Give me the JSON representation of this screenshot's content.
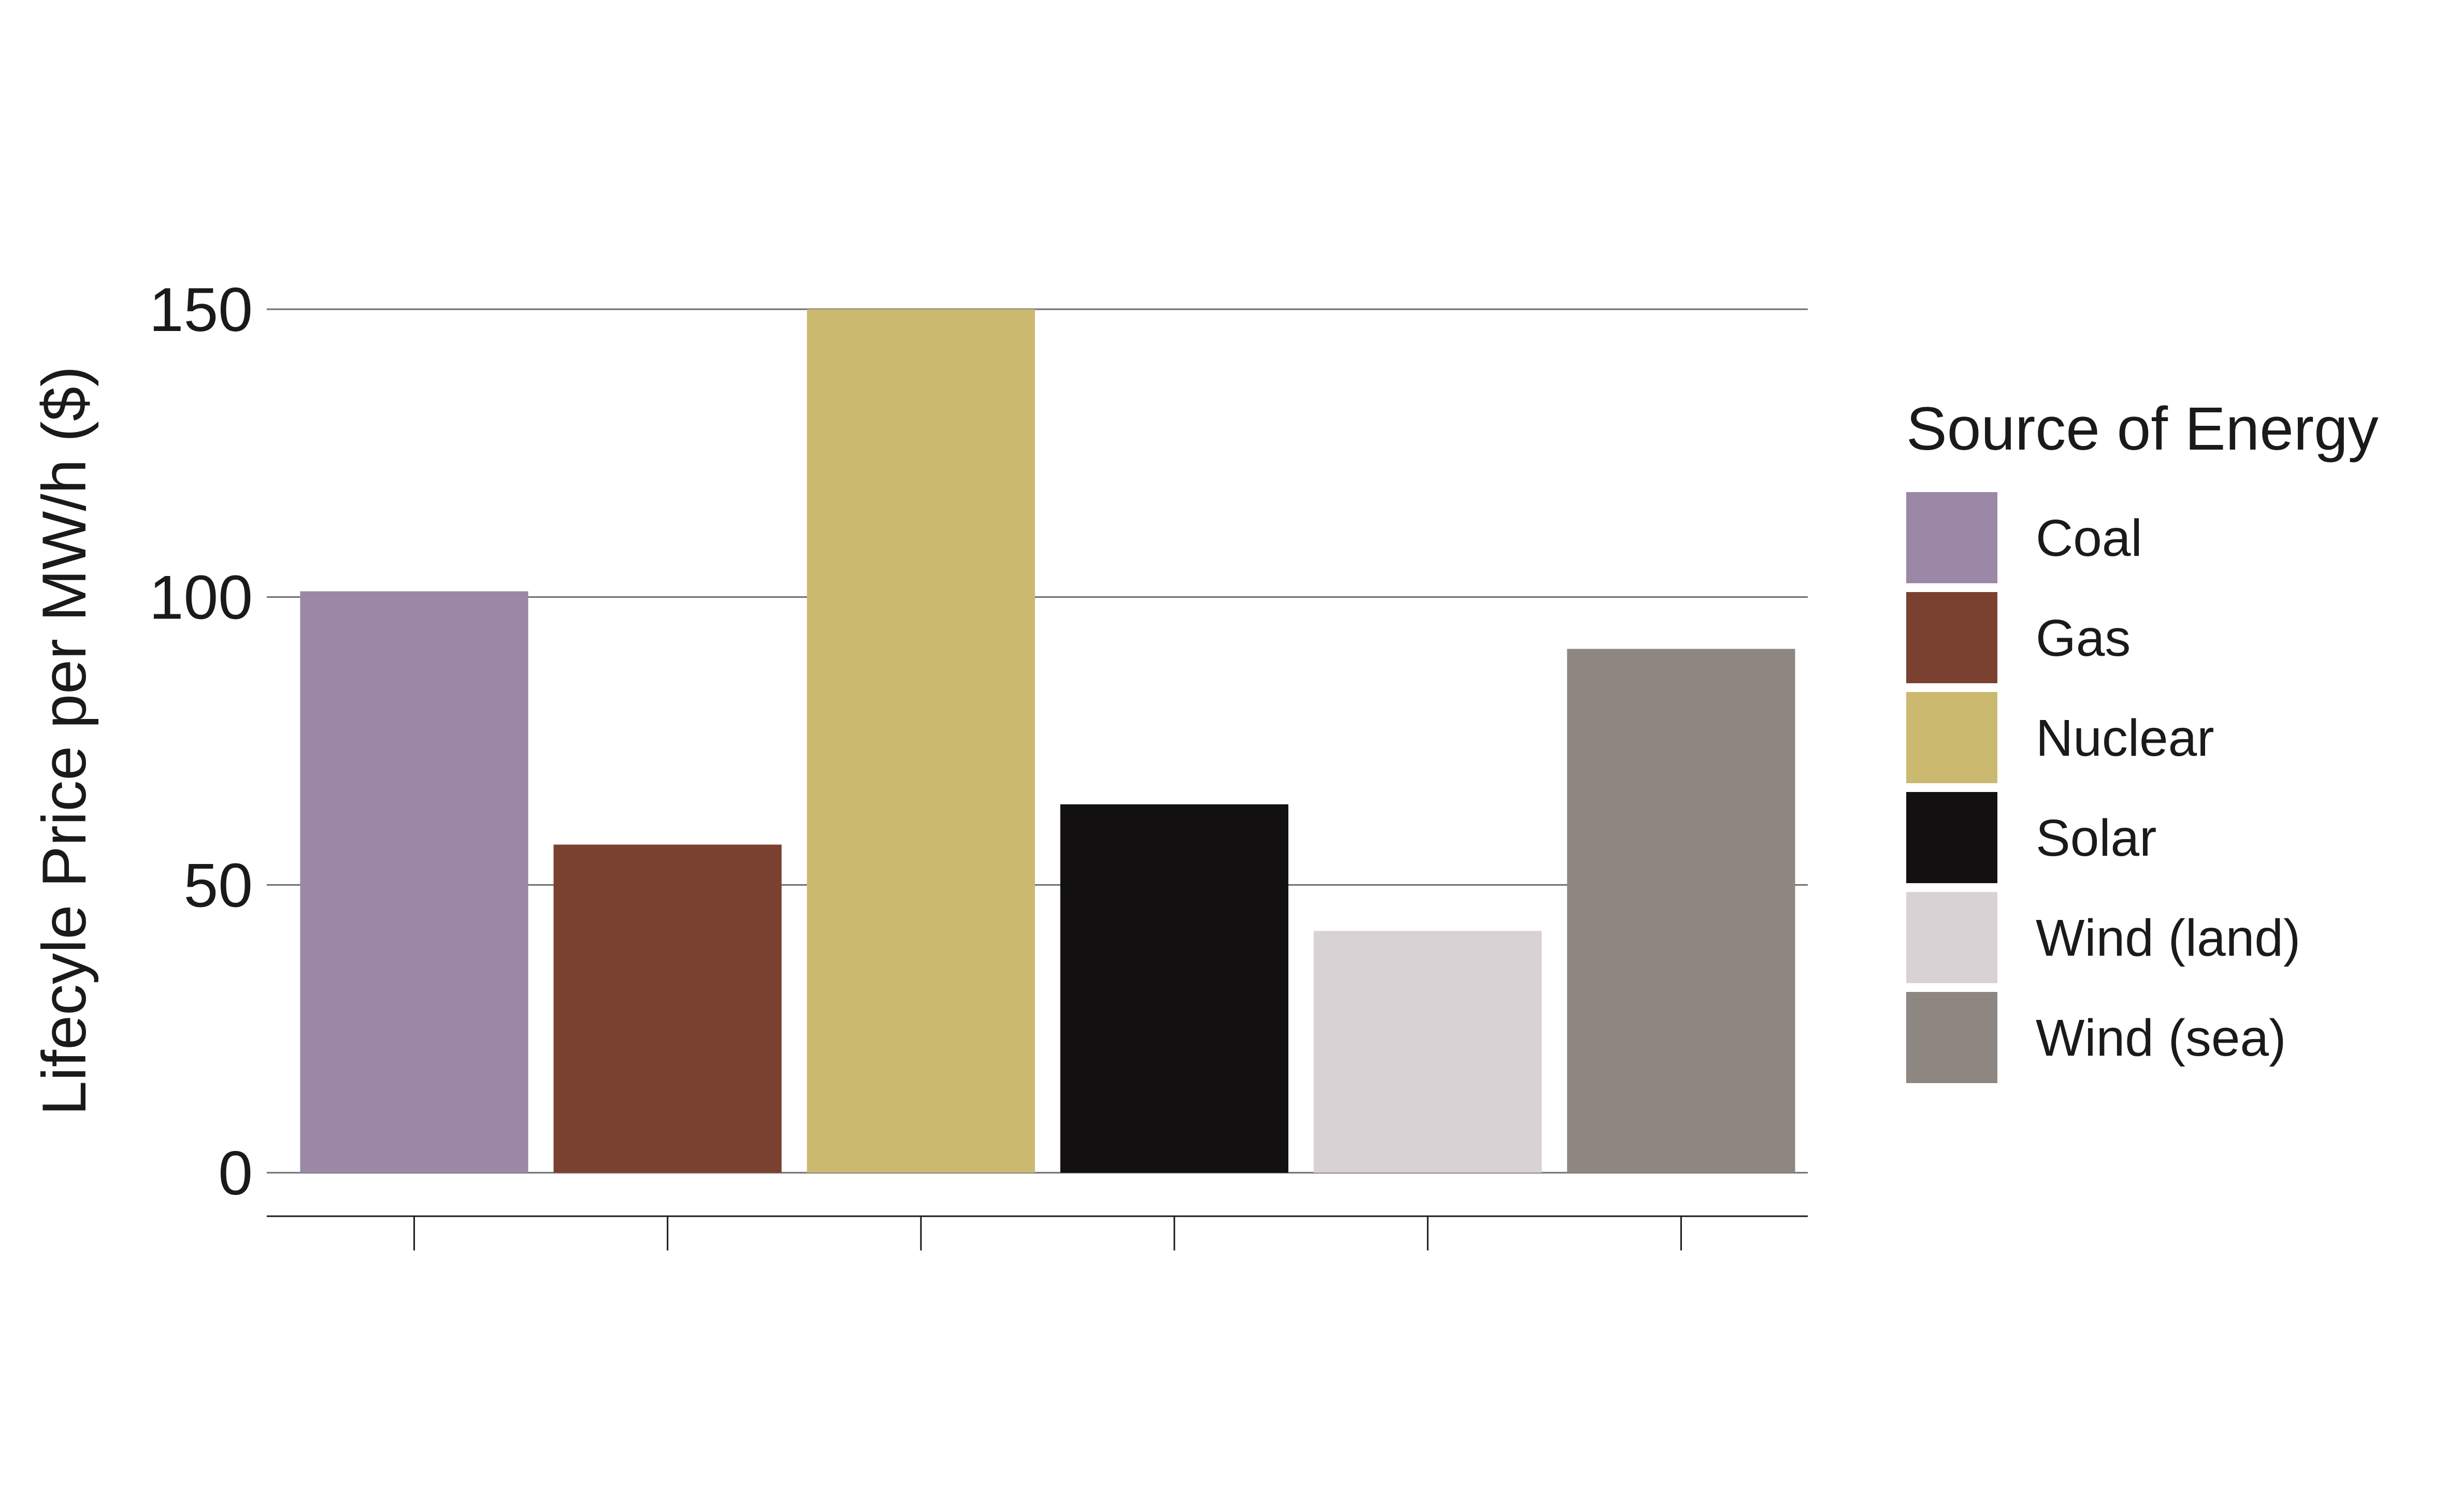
{
  "chart_data": {
    "type": "bar",
    "categories": [
      "Coal",
      "Gas",
      "Nuclear",
      "Solar",
      "Wind (land)",
      "Wind (sea)"
    ],
    "values": [
      101,
      57,
      150,
      64,
      42,
      91
    ],
    "colors": [
      "#9b88a6",
      "#7a4130",
      "#ccb970",
      "#121011",
      "#d8d2d4",
      "#8e8781"
    ],
    "title": "",
    "xlabel": "",
    "ylabel": "Lifecyle Price per MW/h ($)",
    "ylim": [
      0,
      150
    ],
    "yticks": [
      0,
      50,
      100,
      150
    ],
    "grid": true,
    "legend": {
      "title": "Source of Energy",
      "placement": "right",
      "entries": [
        "Coal",
        "Gas",
        "Nuclear",
        "Solar",
        "Wind (land)",
        "Wind (sea)"
      ]
    }
  }
}
